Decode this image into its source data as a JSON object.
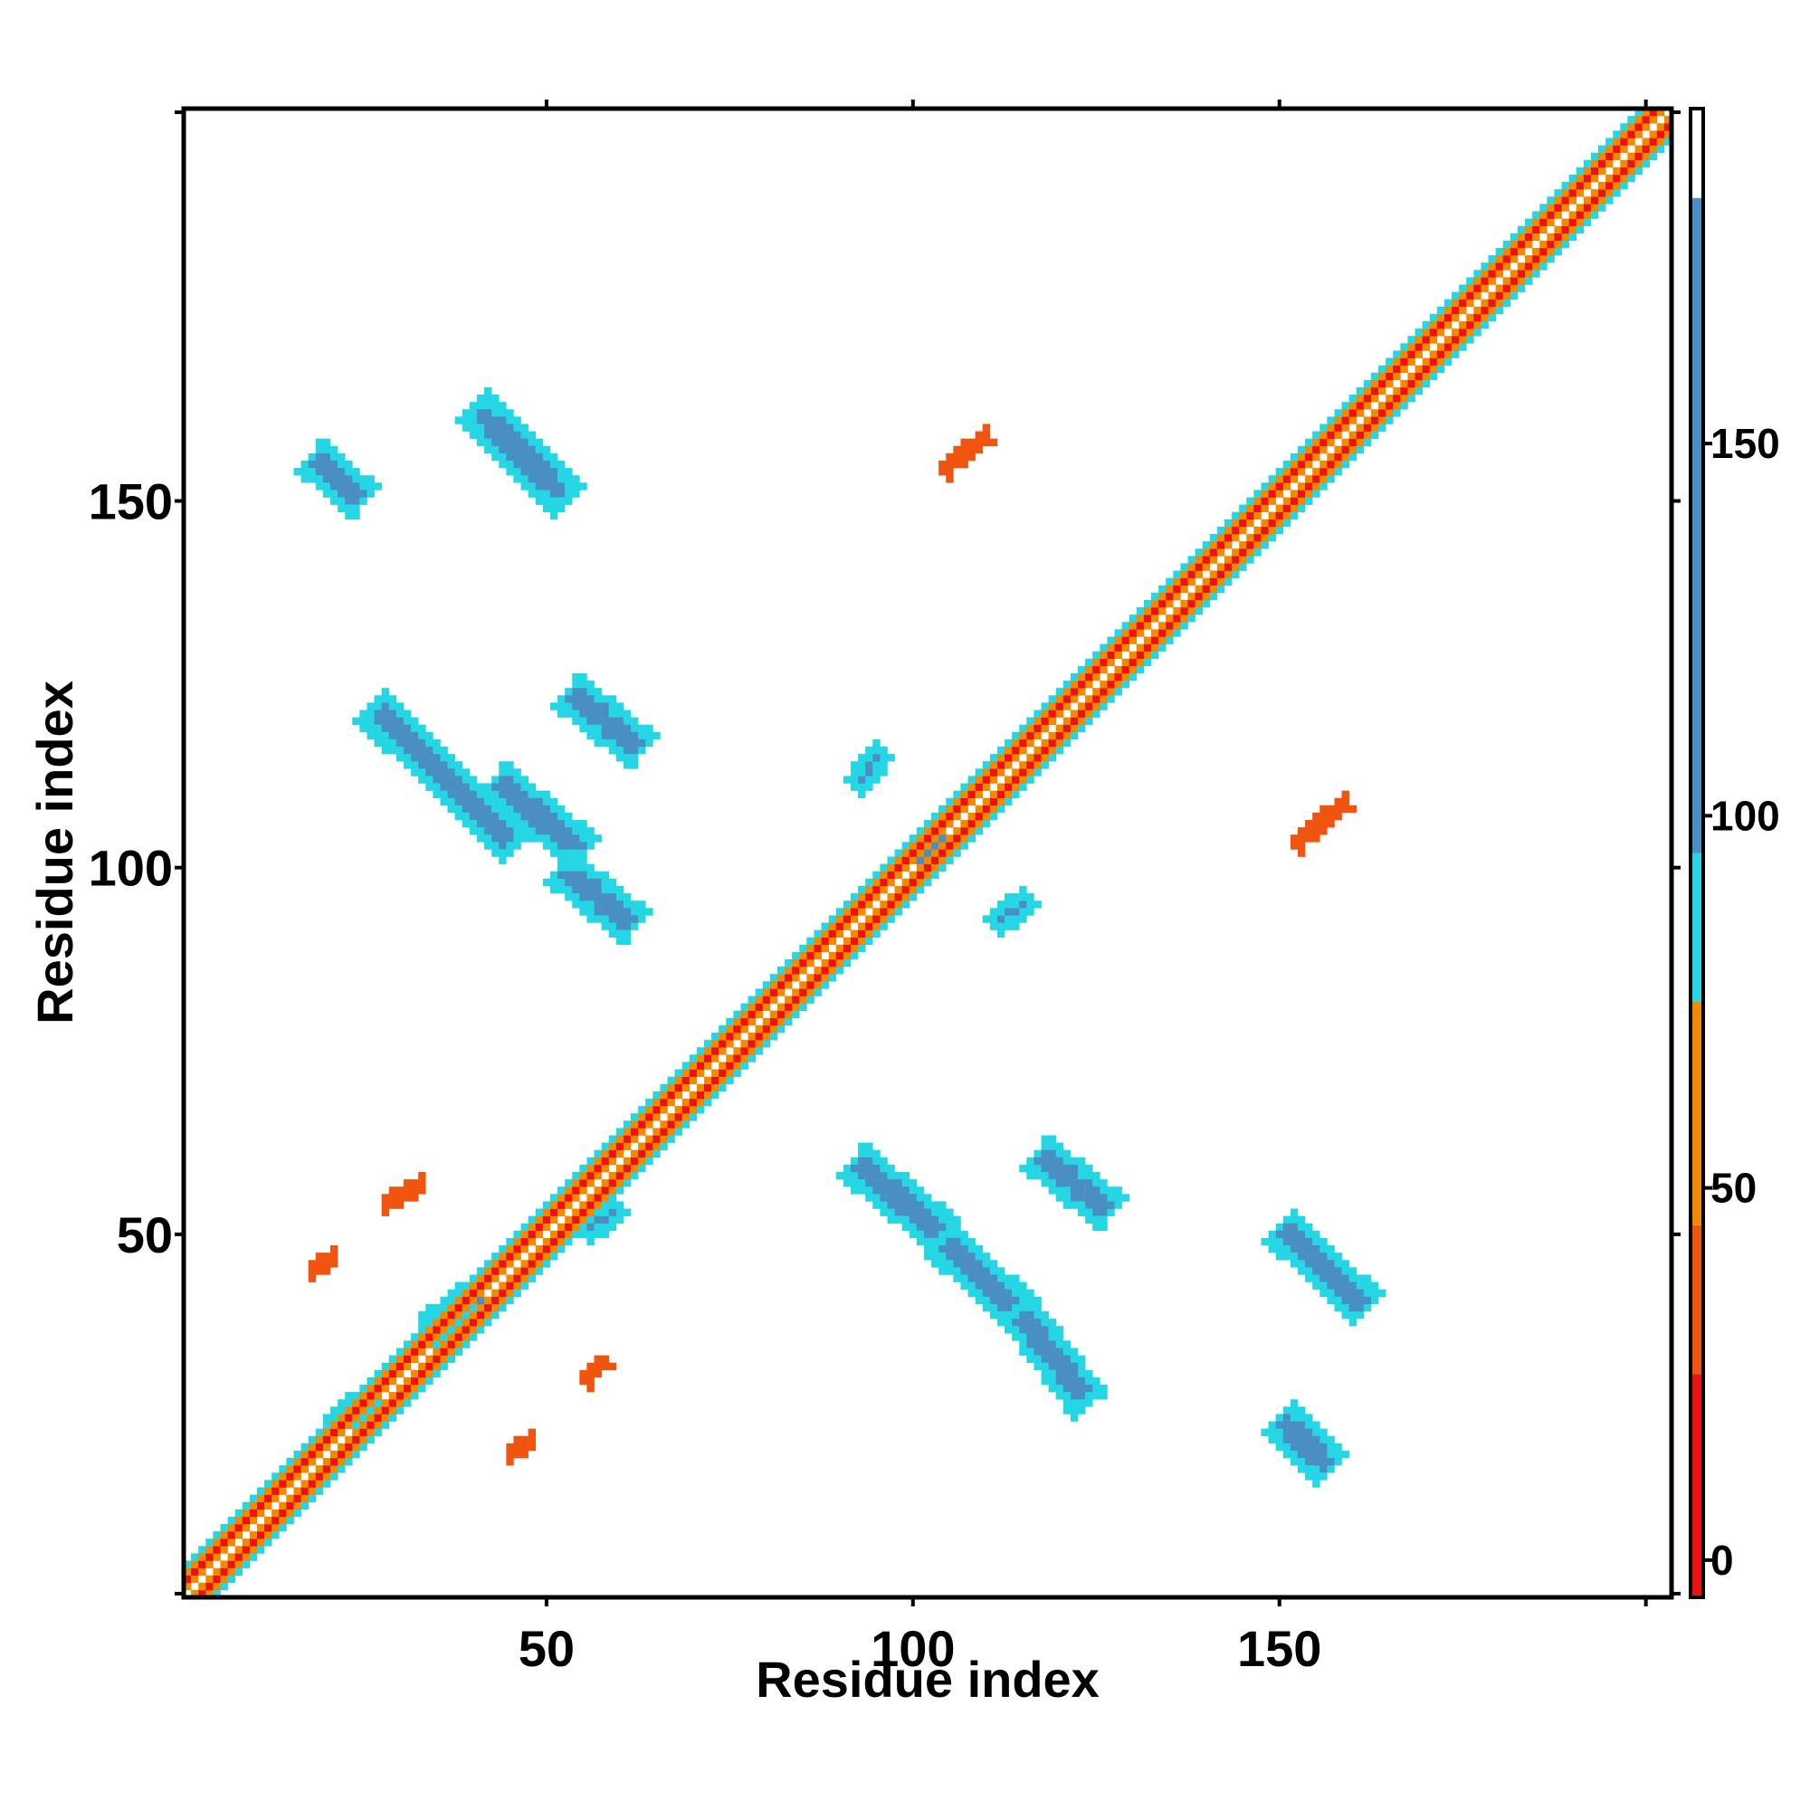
{
  "chart_data": {
    "type": "heatmap",
    "title": "",
    "xlabel": "Residue index",
    "ylabel": "Residue index",
    "xlim": [
      1,
      203
    ],
    "ylim": [
      1,
      203
    ],
    "xticks": [
      50,
      100,
      150
    ],
    "yticks": [
      50,
      100,
      150
    ],
    "colorbar": {
      "range": [
        -5,
        195
      ],
      "ticks": [
        0,
        50,
        100,
        150
      ],
      "bins": [
        {
          "from": -5,
          "to": 25,
          "color": "#ee1111"
        },
        {
          "from": 25,
          "to": 45,
          "color": "#f05510"
        },
        {
          "from": 45,
          "to": 75,
          "color": "#f28a00"
        },
        {
          "from": 75,
          "to": 95,
          "color": "#25d6e5"
        },
        {
          "from": 95,
          "to": 183,
          "color": "#4a8fc4"
        },
        {
          "from": 183,
          "to": 195,
          "color": "#ffffff"
        }
      ]
    },
    "features": [
      {
        "kind": "diagonal",
        "from": 1,
        "to": 203
      },
      {
        "kind": "strand",
        "x": [
          26,
          46
        ],
        "y": [
          122,
          103
        ],
        "value": 140,
        "width": 2.5
      },
      {
        "kind": "strand",
        "x": [
          43,
          55
        ],
        "y": [
          112,
          102
        ],
        "value": 140,
        "width": 2.5
      },
      {
        "kind": "strand",
        "x": [
          52,
          62
        ],
        "y": [
          100,
          92
        ],
        "value": 140,
        "width": 2.5
      },
      {
        "kind": "strand",
        "x": [
          53,
          63
        ],
        "y": [
          124,
          116
        ],
        "value": 140,
        "width": 2.5
      },
      {
        "kind": "strand",
        "x": [
          40,
          53
        ],
        "y": [
          163,
          150
        ],
        "value": 140,
        "width": 2.5
      },
      {
        "kind": "strand",
        "x": [
          18,
          25
        ],
        "y": [
          156,
          150
        ],
        "value": 140,
        "width": 2.5
      },
      {
        "kind": "strand",
        "x": [
          92,
          104
        ],
        "y": [
          60,
          50
        ],
        "value": 140,
        "width": 2.5
      },
      {
        "kind": "strand",
        "x": [
          104,
          114
        ],
        "y": [
          49,
          40
        ],
        "value": 140,
        "width": 2.5
      },
      {
        "kind": "strand",
        "x": [
          114,
          124
        ],
        "y": [
          40,
          27
        ],
        "value": 140,
        "width": 2.5
      },
      {
        "kind": "strand",
        "x": [
          117,
          127
        ],
        "y": [
          61,
          53
        ],
        "value": 140,
        "width": 2.5
      },
      {
        "kind": "strand",
        "x": [
          150,
          162
        ],
        "y": [
          51,
          40
        ],
        "value": 140,
        "width": 2.5
      },
      {
        "kind": "strand",
        "x": [
          150,
          157
        ],
        "y": [
          25,
          18
        ],
        "value": 140,
        "width": 2.5
      },
      {
        "kind": "strand",
        "x": [
          111,
          116
        ],
        "y": [
          92,
          96
        ],
        "value": 140,
        "width": 1.5
      },
      {
        "kind": "strand",
        "x": [
          92,
          96
        ],
        "y": [
          111,
          116
        ],
        "value": 140,
        "width": 1.5
      },
      {
        "kind": "strand",
        "x": [
          101,
          105
        ],
        "y": [
          100,
          104
        ],
        "value": 140,
        "width": 2.0
      },
      {
        "kind": "strand",
        "x": [
          21,
          26
        ],
        "y": [
          24,
          28
        ],
        "value": 140,
        "width": 1.5
      },
      {
        "kind": "strand",
        "x": [
          34,
          41
        ],
        "y": [
          37,
          42
        ],
        "value": 140,
        "width": 2.0
      },
      {
        "kind": "strand",
        "x": [
          55,
          60
        ],
        "y": [
          50,
          54
        ],
        "value": 140,
        "width": 1.5
      },
      {
        "kind": "strand",
        "x": [
          104,
          110
        ],
        "y": [
          154,
          159
        ],
        "value": 35,
        "width": 0.8
      },
      {
        "kind": "strand",
        "x": [
          152,
          159
        ],
        "y": [
          103,
          109
        ],
        "value": 35,
        "width": 0.8
      },
      {
        "kind": "strand",
        "x": [
          28,
          33
        ],
        "y": [
          54,
          57
        ],
        "value": 35,
        "width": 0.8
      },
      {
        "kind": "strand",
        "x": [
          18,
          21
        ],
        "y": [
          45,
          47
        ],
        "value": 35,
        "width": 0.8
      },
      {
        "kind": "strand",
        "x": [
          55,
          58
        ],
        "y": [
          30,
          33
        ],
        "value": 35,
        "width": 0.8
      },
      {
        "kind": "strand",
        "x": [
          45,
          48
        ],
        "y": [
          20,
          22
        ],
        "value": 35,
        "width": 0.8
      }
    ]
  }
}
